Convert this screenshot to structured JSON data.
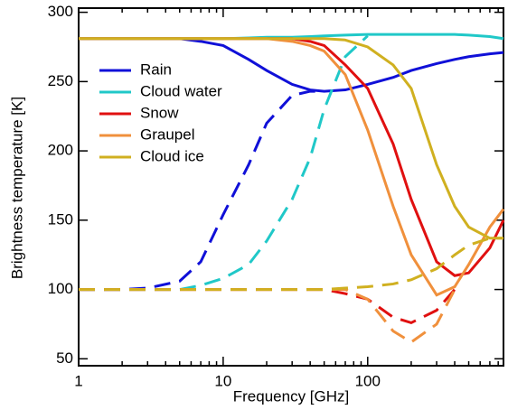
{
  "chart_data": {
    "type": "line",
    "xlabel": "Frequency [GHz]",
    "ylabel": "Brightness temperature [K]",
    "log_x": true,
    "xlim": [
      1,
      870
    ],
    "xticks": [
      1,
      10,
      100
    ],
    "xminorticks": [
      2,
      3,
      4,
      5,
      6,
      7,
      8,
      9,
      20,
      30,
      40,
      50,
      60,
      70,
      80,
      90,
      200,
      300,
      400,
      500,
      600,
      700,
      800
    ],
    "ylim": [
      45,
      303
    ],
    "yticks": [
      50,
      100,
      150,
      200,
      250,
      300
    ],
    "legend": "upper left",
    "x": [
      1,
      2,
      3,
      5,
      7,
      10,
      15,
      20,
      30,
      40,
      50,
      70,
      100,
      150,
      200,
      300,
      400,
      500,
      700,
      870
    ],
    "series": [
      {
        "name": "Rain",
        "color": "#1010d8",
        "values": [
          281,
          281,
          281,
          281,
          279,
          276,
          266,
          258,
          248,
          244,
          243,
          244,
          248,
          253,
          258,
          263,
          266,
          268,
          270,
          271
        ],
        "dashed_values": [
          100,
          100,
          101,
          106,
          120,
          154,
          190,
          220,
          240,
          243,
          243,
          null,
          null,
          null,
          null,
          null,
          null,
          null,
          null,
          null
        ]
      },
      {
        "name": "Cloud water",
        "color": "#20c8c8",
        "values": [
          281,
          281,
          281,
          281,
          281,
          281,
          281.5,
          282,
          282,
          282.5,
          283,
          283.5,
          284,
          284,
          284,
          284,
          284,
          283.5,
          282.5,
          281
        ],
        "dashed_values": [
          100,
          100,
          100,
          100,
          103,
          108,
          118,
          135,
          165,
          195,
          230,
          268,
          283,
          null,
          null,
          null,
          null,
          null,
          null,
          null
        ]
      },
      {
        "name": "Snow",
        "color": "#e01010",
        "values": [
          281,
          281,
          281,
          281,
          281,
          281,
          281,
          281,
          281,
          279,
          276,
          262,
          245,
          205,
          165,
          120,
          110,
          112,
          130,
          150
        ],
        "dashed_values": [
          100,
          100,
          100,
          100,
          100,
          100,
          100,
          100,
          100,
          100,
          100,
          97,
          93,
          80,
          76,
          85,
          100,
          null,
          null,
          null
        ]
      },
      {
        "name": "Graupel",
        "color": "#f0903c",
        "values": [
          281,
          281,
          281,
          281,
          281,
          281,
          281,
          281,
          279,
          276,
          272,
          255,
          215,
          160,
          125,
          96,
          102,
          118,
          145,
          158
        ],
        "dashed_values": [
          100,
          100,
          100,
          100,
          100,
          100,
          100,
          100,
          100,
          100,
          100,
          100,
          93,
          70,
          62,
          75,
          100,
          null,
          null,
          null
        ]
      },
      {
        "name": "Cloud ice",
        "color": "#d0b020",
        "values": [
          281,
          281,
          281,
          281,
          281,
          281,
          281,
          281,
          281,
          281,
          281,
          280,
          275,
          262,
          245,
          190,
          160,
          145,
          137,
          137
        ],
        "dashed_values": [
          100,
          100,
          100,
          100,
          100,
          100,
          100,
          100,
          100,
          100,
          100,
          101,
          102,
          104,
          107,
          115,
          125,
          132,
          137,
          137
        ]
      }
    ]
  }
}
